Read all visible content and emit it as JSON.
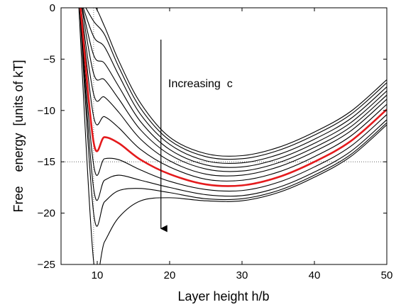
{
  "chart_data": {
    "type": "line",
    "title": "",
    "xlabel": "Layer height h/b",
    "ylabel": "Free    energy  [units of kT]",
    "xlim": [
      5,
      50
    ],
    "ylim": [
      -25,
      0
    ],
    "xticks": [
      10,
      20,
      30,
      40,
      50
    ],
    "yticks": [
      0,
      -5,
      -10,
      -15,
      -20,
      -25
    ],
    "xtick_labels": [
      "10",
      "20",
      "30",
      "40",
      "50"
    ],
    "ytick_labels": [
      "0",
      "−5",
      "−10",
      "−15",
      "−20",
      "−25"
    ],
    "grid": "dotted reference lines at x=9.5 and y=-15",
    "legend": "none",
    "annotation": {
      "text": "Increasing  c",
      "arrow": {
        "x": 18.8,
        "y_from": -3.1,
        "y_to": -21.5
      }
    },
    "colors": {
      "curves": "#000000",
      "highlight": "#e41a1c",
      "reference": "#555555"
    },
    "reference_lines": {
      "x": 9.5,
      "y": -15
    },
    "series": [
      {
        "x": [
          7.8,
          9.5,
          11,
          13,
          16,
          20,
          25,
          30,
          35,
          40,
          45,
          50
        ],
        "y": [
          0.8,
          0.3,
          -1.8,
          -5.2,
          -9.3,
          -12.6,
          -14.2,
          -14.4,
          -13.6,
          -12.1,
          -10.1,
          -7.0
        ]
      },
      {
        "x": [
          7.8,
          9.5,
          11,
          13,
          16,
          20,
          25,
          30,
          35,
          40,
          45,
          50
        ],
        "y": [
          0.8,
          -1.3,
          -2.6,
          -5.8,
          -9.8,
          -12.9,
          -14.5,
          -14.7,
          -13.9,
          -12.4,
          -10.4,
          -7.3
        ]
      },
      {
        "x": [
          7.7,
          9.5,
          11,
          13,
          16,
          20,
          25,
          30,
          35,
          40,
          45,
          50
        ],
        "y": [
          0.8,
          -2.8,
          -3.8,
          -6.6,
          -10.4,
          -13.3,
          -14.9,
          -15.1,
          -14.3,
          -12.8,
          -10.8,
          -7.7
        ]
      },
      {
        "x": [
          7.7,
          9.5,
          11,
          13,
          16,
          20,
          25,
          30,
          35,
          40,
          45,
          50
        ],
        "y": [
          0.8,
          -4.6,
          -5.4,
          -7.7,
          -11.1,
          -13.8,
          -15.3,
          -15.5,
          -14.7,
          -13.2,
          -11.2,
          -8.1
        ]
      },
      {
        "x": [
          7.7,
          9.5,
          11,
          13,
          16,
          20,
          25,
          30,
          35,
          40,
          45,
          50
        ],
        "y": [
          0.8,
          -6.4,
          -7.0,
          -8.9,
          -11.9,
          -14.3,
          -15.7,
          -15.9,
          -15.1,
          -13.6,
          -11.6,
          -8.5
        ]
      },
      {
        "x": [
          7.6,
          9.5,
          11,
          13,
          16,
          20,
          25,
          30,
          35,
          40,
          45,
          50
        ],
        "y": [
          0.8,
          -8.4,
          -8.7,
          -10.2,
          -12.8,
          -14.9,
          -16.2,
          -16.3,
          -15.5,
          -14.0,
          -12.0,
          -8.9
        ]
      },
      {
        "x": [
          7.6,
          9.5,
          11,
          13,
          16,
          20,
          25,
          30,
          35,
          40,
          45,
          50
        ],
        "y": [
          0.8,
          -10.6,
          -10.6,
          -11.7,
          -13.8,
          -15.5,
          -16.7,
          -16.8,
          -16.0,
          -14.5,
          -12.5,
          -9.4
        ]
      },
      {
        "x": [
          7.6,
          9.5,
          11,
          13,
          16,
          20,
          25,
          30,
          35,
          40,
          45,
          50
        ],
        "y": [
          0.8,
          -13.1,
          -12.6,
          -13.2,
          -14.8,
          -16.2,
          -17.2,
          -17.3,
          -16.5,
          -15.0,
          -13.0,
          -9.9
        ],
        "name": "",
        "highlight": true
      },
      {
        "x": [
          7.5,
          9.5,
          11,
          13,
          16,
          20,
          25,
          30,
          35,
          40,
          45,
          50
        ],
        "y": [
          0.8,
          -15.3,
          -14.7,
          -14.8,
          -15.8,
          -16.9,
          -17.7,
          -17.8,
          -17.0,
          -15.5,
          -13.5,
          -10.4
        ]
      },
      {
        "x": [
          7.5,
          9.5,
          11,
          13,
          16,
          20,
          25,
          30,
          35,
          40,
          45,
          50
        ],
        "y": [
          0.8,
          -17.6,
          -16.8,
          -16.3,
          -16.8,
          -17.5,
          -18.2,
          -18.3,
          -17.5,
          -16.0,
          -14.0,
          -10.9
        ]
      },
      {
        "x": [
          7.5,
          9.5,
          11,
          13,
          16,
          20,
          25,
          30,
          35,
          40,
          45,
          50
        ],
        "y": [
          0.8,
          -20.0,
          -18.9,
          -17.8,
          -17.6,
          -18.0,
          -18.6,
          -18.6,
          -17.8,
          -16.3,
          -14.3,
          -11.2
        ]
      },
      {
        "x": [
          7.4,
          9.5,
          11,
          13,
          16,
          20,
          25,
          30,
          35,
          40,
          45,
          50
        ],
        "y": [
          0.8,
          -24.7,
          -22.8,
          -20.4,
          -18.8,
          -18.5,
          -18.8,
          -18.8,
          -18.0,
          -16.5,
          -14.5,
          -11.4
        ]
      }
    ]
  }
}
